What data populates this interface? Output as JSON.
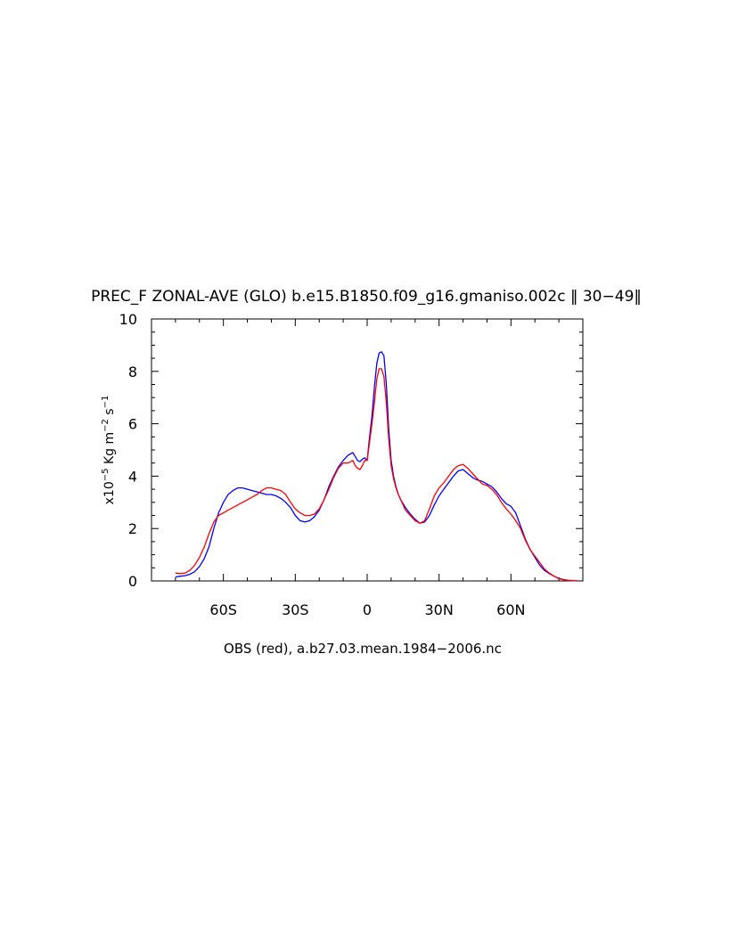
{
  "chart_data": {
    "type": "line",
    "title": "PREC_F ZONAL-AVE (GLO) b.e15.B1850.f09_g16.gmaniso.002c ‖ 30−49‖",
    "xlabel": "OBS (red), a.b27.03.mean.1984−2006.nc",
    "ylabel": {
      "base": "x10",
      "e1": "−5",
      "mid1": " Kg m",
      "e2": "−2",
      "mid2": " s",
      "e3": "−1"
    },
    "xlim": [
      -90,
      90
    ],
    "ylim": [
      0,
      10
    ],
    "x_ticks": [
      {
        "value": -60,
        "label": "60S"
      },
      {
        "value": -30,
        "label": "30S"
      },
      {
        "value": 0,
        "label": "0"
      },
      {
        "value": 30,
        "label": "30N"
      },
      {
        "value": 60,
        "label": "60N"
      }
    ],
    "y_ticks": [
      {
        "value": 0,
        "label": "0"
      },
      {
        "value": 2,
        "label": "2"
      },
      {
        "value": 4,
        "label": "4"
      },
      {
        "value": 6,
        "label": "6"
      },
      {
        "value": 8,
        "label": "8"
      },
      {
        "value": 10,
        "label": "10"
      }
    ],
    "grid": false,
    "legend": "none",
    "series": [
      {
        "color": "#0000ff",
        "x": [
          -80,
          -78,
          -76,
          -74,
          -72,
          -70,
          -68,
          -66,
          -64,
          -62,
          -60,
          -58,
          -56,
          -54,
          -52,
          -50,
          -48,
          -46,
          -44,
          -42,
          -40,
          -38,
          -36,
          -34,
          -32,
          -30,
          -28,
          -26,
          -24,
          -22,
          -20,
          -18,
          -16,
          -14,
          -12,
          -10,
          -8,
          -6,
          -5,
          -4,
          -3,
          -2,
          -1,
          0,
          1,
          2,
          3,
          4,
          5,
          6,
          7,
          8,
          9,
          10,
          11,
          12,
          13,
          14,
          16,
          18,
          20,
          22,
          24,
          26,
          28,
          30,
          32,
          34,
          36,
          38,
          40,
          42,
          44,
          46,
          48,
          50,
          52,
          54,
          56,
          58,
          60,
          62,
          64,
          66,
          68,
          70,
          72,
          74,
          76,
          78,
          80,
          82,
          84,
          86,
          88
        ],
        "y": [
          0.15,
          0.18,
          0.2,
          0.25,
          0.35,
          0.55,
          0.85,
          1.3,
          2.0,
          2.6,
          3.0,
          3.3,
          3.45,
          3.55,
          3.55,
          3.5,
          3.45,
          3.4,
          3.35,
          3.3,
          3.3,
          3.25,
          3.15,
          3.0,
          2.8,
          2.5,
          2.3,
          2.25,
          2.3,
          2.45,
          2.7,
          3.1,
          3.6,
          4.0,
          4.35,
          4.6,
          4.8,
          4.9,
          4.75,
          4.6,
          4.55,
          4.65,
          4.7,
          4.6,
          5.5,
          6.3,
          7.4,
          8.3,
          8.7,
          8.75,
          8.6,
          7.5,
          5.8,
          4.6,
          4.0,
          3.6,
          3.3,
          3.1,
          2.8,
          2.55,
          2.35,
          2.2,
          2.25,
          2.5,
          2.9,
          3.25,
          3.5,
          3.75,
          4.0,
          4.2,
          4.25,
          4.1,
          3.95,
          3.85,
          3.8,
          3.7,
          3.6,
          3.4,
          3.15,
          2.95,
          2.85,
          2.6,
          2.1,
          1.6,
          1.2,
          0.9,
          0.6,
          0.4,
          0.28,
          0.18,
          0.1,
          0.05,
          0.02,
          0.01,
          0.0
        ]
      },
      {
        "color": "#ff0000",
        "x": [
          -80,
          -78,
          -76,
          -74,
          -72,
          -70,
          -68,
          -66,
          -64,
          -62,
          -60,
          -58,
          -56,
          -54,
          -52,
          -50,
          -48,
          -46,
          -44,
          -42,
          -40,
          -38,
          -36,
          -34,
          -32,
          -30,
          -28,
          -26,
          -24,
          -22,
          -20,
          -18,
          -16,
          -14,
          -12,
          -10,
          -8,
          -6,
          -5,
          -4,
          -3,
          -2,
          -1,
          0,
          1,
          2,
          3,
          4,
          5,
          6,
          7,
          8,
          9,
          10,
          11,
          12,
          13,
          14,
          16,
          18,
          20,
          22,
          24,
          26,
          28,
          30,
          32,
          34,
          36,
          38,
          40,
          42,
          44,
          46,
          48,
          50,
          52,
          54,
          56,
          58,
          60,
          62,
          64,
          66,
          68,
          70,
          72,
          74,
          76,
          78,
          80,
          82,
          84,
          86,
          88
        ],
        "y": [
          0.3,
          0.28,
          0.3,
          0.4,
          0.6,
          0.9,
          1.3,
          1.8,
          2.25,
          2.5,
          2.6,
          2.7,
          2.8,
          2.9,
          3.0,
          3.1,
          3.2,
          3.3,
          3.45,
          3.55,
          3.55,
          3.5,
          3.45,
          3.3,
          3.0,
          2.75,
          2.6,
          2.5,
          2.5,
          2.55,
          2.75,
          3.1,
          3.5,
          3.95,
          4.3,
          4.5,
          4.5,
          4.6,
          4.4,
          4.3,
          4.25,
          4.4,
          4.6,
          4.6,
          5.3,
          6.0,
          6.8,
          7.7,
          8.1,
          8.1,
          7.8,
          6.8,
          5.4,
          4.4,
          3.9,
          3.55,
          3.3,
          3.1,
          2.7,
          2.5,
          2.3,
          2.2,
          2.3,
          2.75,
          3.25,
          3.55,
          3.75,
          4.0,
          4.25,
          4.4,
          4.45,
          4.3,
          4.1,
          3.9,
          3.7,
          3.65,
          3.5,
          3.3,
          3.0,
          2.75,
          2.55,
          2.3,
          2.0,
          1.55,
          1.2,
          0.95,
          0.7,
          0.45,
          0.3,
          0.18,
          0.08,
          0.04,
          0.02,
          0.01,
          0.0
        ]
      }
    ]
  }
}
